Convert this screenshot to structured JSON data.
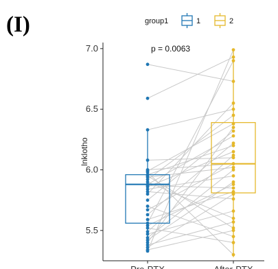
{
  "panel_label": "(I)",
  "colors": {
    "group1": "#1f77b4",
    "group2": "#e5b82b",
    "paired_line": "#c8c8c8",
    "axis": "#222222"
  },
  "chart_data": {
    "type": "box-paired",
    "title": "",
    "xlabel": "",
    "ylabel": "lnklotho",
    "ylim": [
      5.25,
      7.05
    ],
    "yticks": [
      5.5,
      6.0,
      6.5,
      7.0
    ],
    "ytick_labels": [
      "5.5",
      "6.0",
      "6.5",
      "7.0"
    ],
    "categories": [
      "Pre-PTX",
      "After-PTX"
    ],
    "annotation": "p = 0.0063",
    "legend": {
      "title": "group1",
      "entries": [
        "1",
        "2"
      ],
      "position": "top"
    },
    "series": [
      {
        "name": "1",
        "category": "Pre-PTX",
        "box": {
          "q1": 5.56,
          "median": 5.88,
          "q3": 5.96,
          "whisker_low": 5.33,
          "whisker_high": 6.33
        },
        "points": [
          6.87,
          6.59,
          6.33,
          6.08,
          6.0,
          5.99,
          5.98,
          5.96,
          5.95,
          5.94,
          5.92,
          5.9,
          5.88,
          5.87,
          5.86,
          5.84,
          5.82,
          5.8,
          5.75,
          5.7,
          5.67,
          5.63,
          5.59,
          5.56,
          5.54,
          5.52,
          5.49,
          5.47,
          5.44,
          5.42,
          5.4,
          5.38,
          5.36,
          5.34,
          5.33
        ]
      },
      {
        "name": "2",
        "category": "After-PTX",
        "box": {
          "q1": 5.81,
          "median": 6.05,
          "q3": 6.39,
          "whisker_low": 5.28,
          "whisker_high": 6.99
        },
        "points": [
          6.73,
          6.93,
          6.5,
          6.1,
          6.05,
          6.38,
          5.3,
          6.2,
          5.52,
          6.02,
          6.45,
          5.6,
          6.28,
          5.85,
          6.15,
          5.95,
          5.76,
          6.55,
          6.32,
          5.45,
          6.05,
          6.22,
          5.82,
          6.9,
          5.88,
          5.4,
          6.12,
          5.66,
          6.0,
          5.9,
          6.35,
          5.57,
          5.8,
          5.5,
          6.99
        ]
      }
    ]
  }
}
